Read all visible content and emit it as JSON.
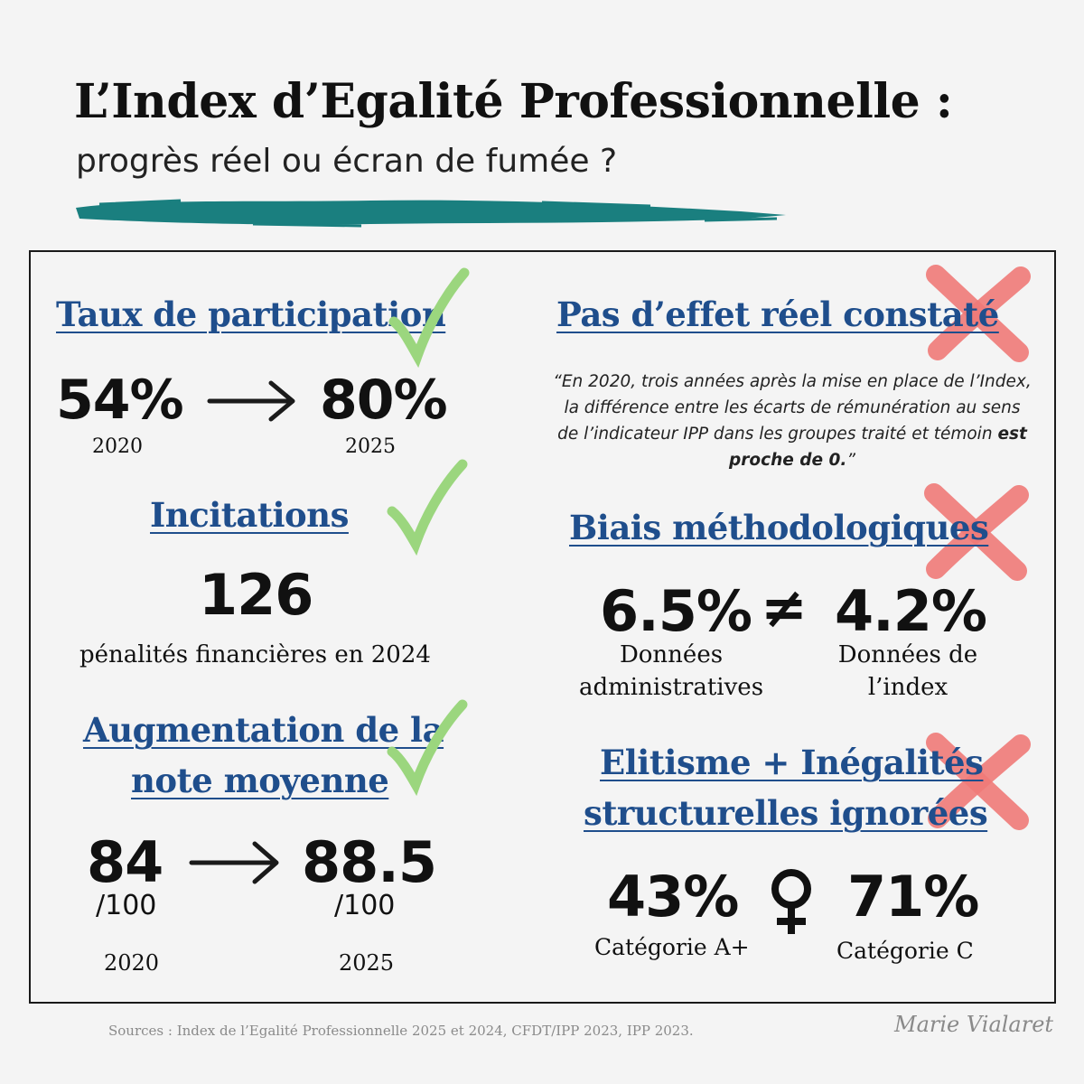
{
  "header": {
    "title": "L’Index d’Egalité Professionnelle :",
    "subtitle": "progrès réel ou écran de fumée ?"
  },
  "left": {
    "participation": {
      "heading": "Taux de participation",
      "from_value": "54%",
      "from_year": "2020",
      "to_value": "80%",
      "to_year": "2025"
    },
    "incitations": {
      "heading": "Incitations",
      "value": "126",
      "caption": "pénalités financières en 2024"
    },
    "note": {
      "heading_line1": "Augmentation de la",
      "heading_line2": "note moyenne",
      "from_value": "84",
      "from_unit": "/100",
      "from_year": "2020",
      "to_value": "88.5",
      "to_unit": "/100",
      "to_year": "2025"
    }
  },
  "right": {
    "effet": {
      "heading": "Pas d’effet réel constaté",
      "quote_text": "“En 2020, trois années après la mise en place de l’Index, la différence entre les écarts de rémunération au sens de l’indicateur IPP dans les groupes traité et témoin ",
      "quote_emphasis": "est proche de 0.",
      "quote_end": "”"
    },
    "biais": {
      "heading": "Biais méthodologiques",
      "left_value": "6.5%",
      "symbol": "≠",
      "right_value": "4.2%",
      "left_label_line1": "Données",
      "left_label_line2": "administratives",
      "right_label_line1": "Données de",
      "right_label_line2": "l’index"
    },
    "elitisme": {
      "heading_line1": "Elitisme + Inégalités",
      "heading_line2": "structurelles ignorées",
      "left_value": "43%",
      "left_label": "Catégorie A+",
      "right_value": "71%",
      "right_label": "Catégorie C",
      "symbol_icon": "female-symbol-icon"
    }
  },
  "footer": {
    "sources": "Sources : Index de l’Egalité Professionnelle 2025 et 2024, CFDT/IPP 2023, IPP 2023.",
    "author": "Marie Vialaret"
  },
  "colors": {
    "heading": "#1f4e8c",
    "check": "#9bd67e",
    "cross": "#f07a78",
    "brush": "#1a7f7f"
  }
}
